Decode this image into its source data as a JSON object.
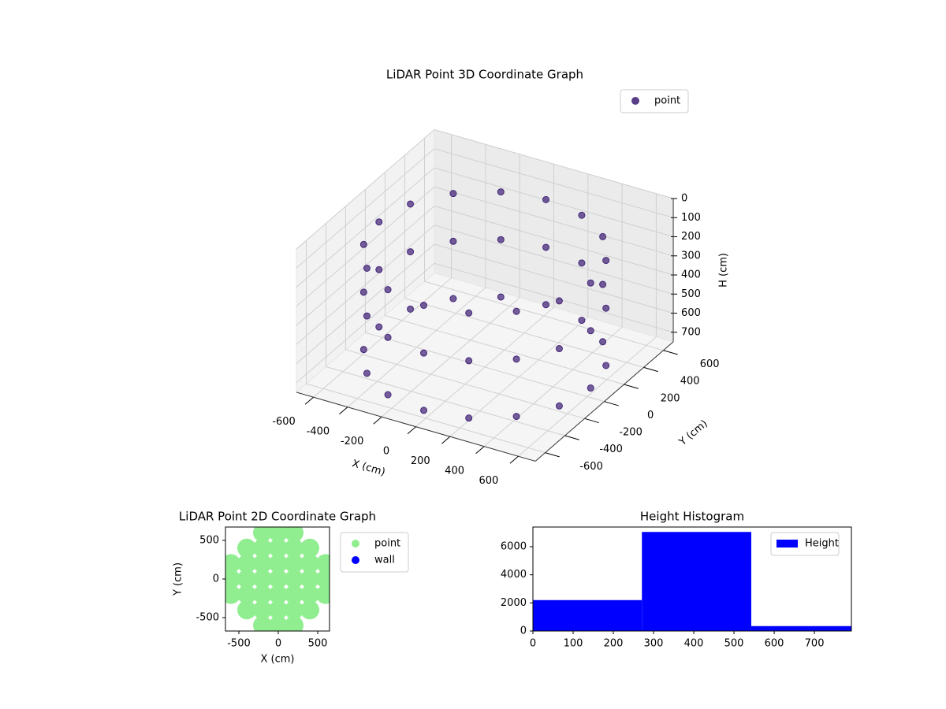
{
  "chart_data": [
    {
      "type": "scatter3d",
      "title": "LiDAR Point 3D Coordinate Graph",
      "x_label": "X (cm)",
      "y_label": "Y (cm)",
      "z_label": "H (cm)",
      "xlim": [
        -700,
        700
      ],
      "ylim": [
        -700,
        700
      ],
      "zlim": [
        0,
        750
      ],
      "z_inverted": true,
      "xticks": [
        -600,
        -400,
        -200,
        0,
        200,
        400,
        600
      ],
      "yticks": [
        -600,
        -400,
        -200,
        0,
        200,
        400,
        600
      ],
      "zticks": [
        0,
        100,
        200,
        300,
        400,
        500,
        600,
        700
      ],
      "grid": true,
      "legend": "upper right",
      "series": [
        {
          "name": "point",
          "color": "#46287a",
          "x": [
            620,
            573,
            438,
            237,
            0,
            -237,
            -438,
            -573,
            -620,
            -573,
            -438,
            -237,
            0,
            237,
            438,
            573,
            620,
            573,
            438,
            237,
            0,
            -237,
            -438,
            -573,
            -620,
            -573,
            -438,
            -237,
            0,
            237,
            438,
            573,
            620,
            573,
            438,
            237,
            0,
            -237,
            -438,
            -573,
            -620,
            -573,
            -438,
            -237,
            0,
            237,
            438,
            573
          ],
          "y": [
            0,
            237,
            438,
            573,
            620,
            573,
            438,
            237,
            0,
            -237,
            -438,
            -573,
            -620,
            -573,
            -438,
            -237,
            0,
            237,
            438,
            573,
            620,
            573,
            438,
            237,
            0,
            -237,
            -438,
            -573,
            -620,
            -573,
            -438,
            -237,
            0,
            237,
            438,
            573,
            620,
            573,
            438,
            237,
            0,
            -237,
            -438,
            -573,
            -620,
            -573,
            -438,
            -237
          ],
          "z": [
            150,
            150,
            150,
            150,
            150,
            150,
            150,
            150,
            150,
            150,
            150,
            150,
            150,
            150,
            150,
            150,
            400,
            400,
            400,
            400,
            400,
            400,
            400,
            400,
            400,
            400,
            400,
            400,
            400,
            400,
            400,
            400,
            700,
            700,
            700,
            700,
            700,
            700,
            700,
            700,
            700,
            700,
            700,
            700,
            700,
            700,
            700,
            700
          ]
        }
      ]
    },
    {
      "type": "scatter",
      "title": "LiDAR Point 2D Coordinate Graph",
      "x_label": "X (cm)",
      "y_label": "Y (cm)",
      "xlim": [
        -670,
        650
      ],
      "ylim": [
        -673,
        673
      ],
      "xticks": [
        -500,
        0,
        500
      ],
      "yticks": [
        -500,
        0,
        500
      ],
      "legend": "outside right",
      "series": [
        {
          "name": "point",
          "color": "#90ee90",
          "x": [
            -600,
            -600,
            -600,
            -400,
            -400,
            -400,
            -400,
            -400,
            -200,
            -200,
            -200,
            -200,
            -200,
            -200,
            -200,
            0,
            0,
            0,
            0,
            0,
            0,
            0,
            200,
            200,
            200,
            200,
            200,
            200,
            200,
            400,
            400,
            400,
            400,
            400,
            600,
            600,
            600
          ],
          "y": [
            -200,
            0,
            200,
            -400,
            -200,
            0,
            200,
            400,
            -600,
            -400,
            -200,
            0,
            200,
            400,
            600,
            -600,
            -400,
            -200,
            0,
            200,
            400,
            600,
            -600,
            -400,
            -200,
            0,
            200,
            400,
            600,
            -400,
            -200,
            0,
            200,
            400,
            -200,
            0,
            200
          ]
        },
        {
          "name": "wall",
          "color": "#0000ff",
          "x": [],
          "y": []
        }
      ]
    },
    {
      "type": "histogram",
      "title": "Height Histogram",
      "bins": [
        0,
        271,
        543,
        792
      ],
      "xlim": [
        0,
        792
      ],
      "ylim": [
        0,
        7400
      ],
      "xticks": [
        0,
        100,
        200,
        300,
        400,
        500,
        600,
        700
      ],
      "yticks": [
        0,
        2000,
        4000,
        6000
      ],
      "legend": "upper right",
      "series": [
        {
          "name": "Height",
          "color": "#0000ff",
          "values": [
            2200,
            7050,
            350
          ]
        }
      ]
    }
  ]
}
